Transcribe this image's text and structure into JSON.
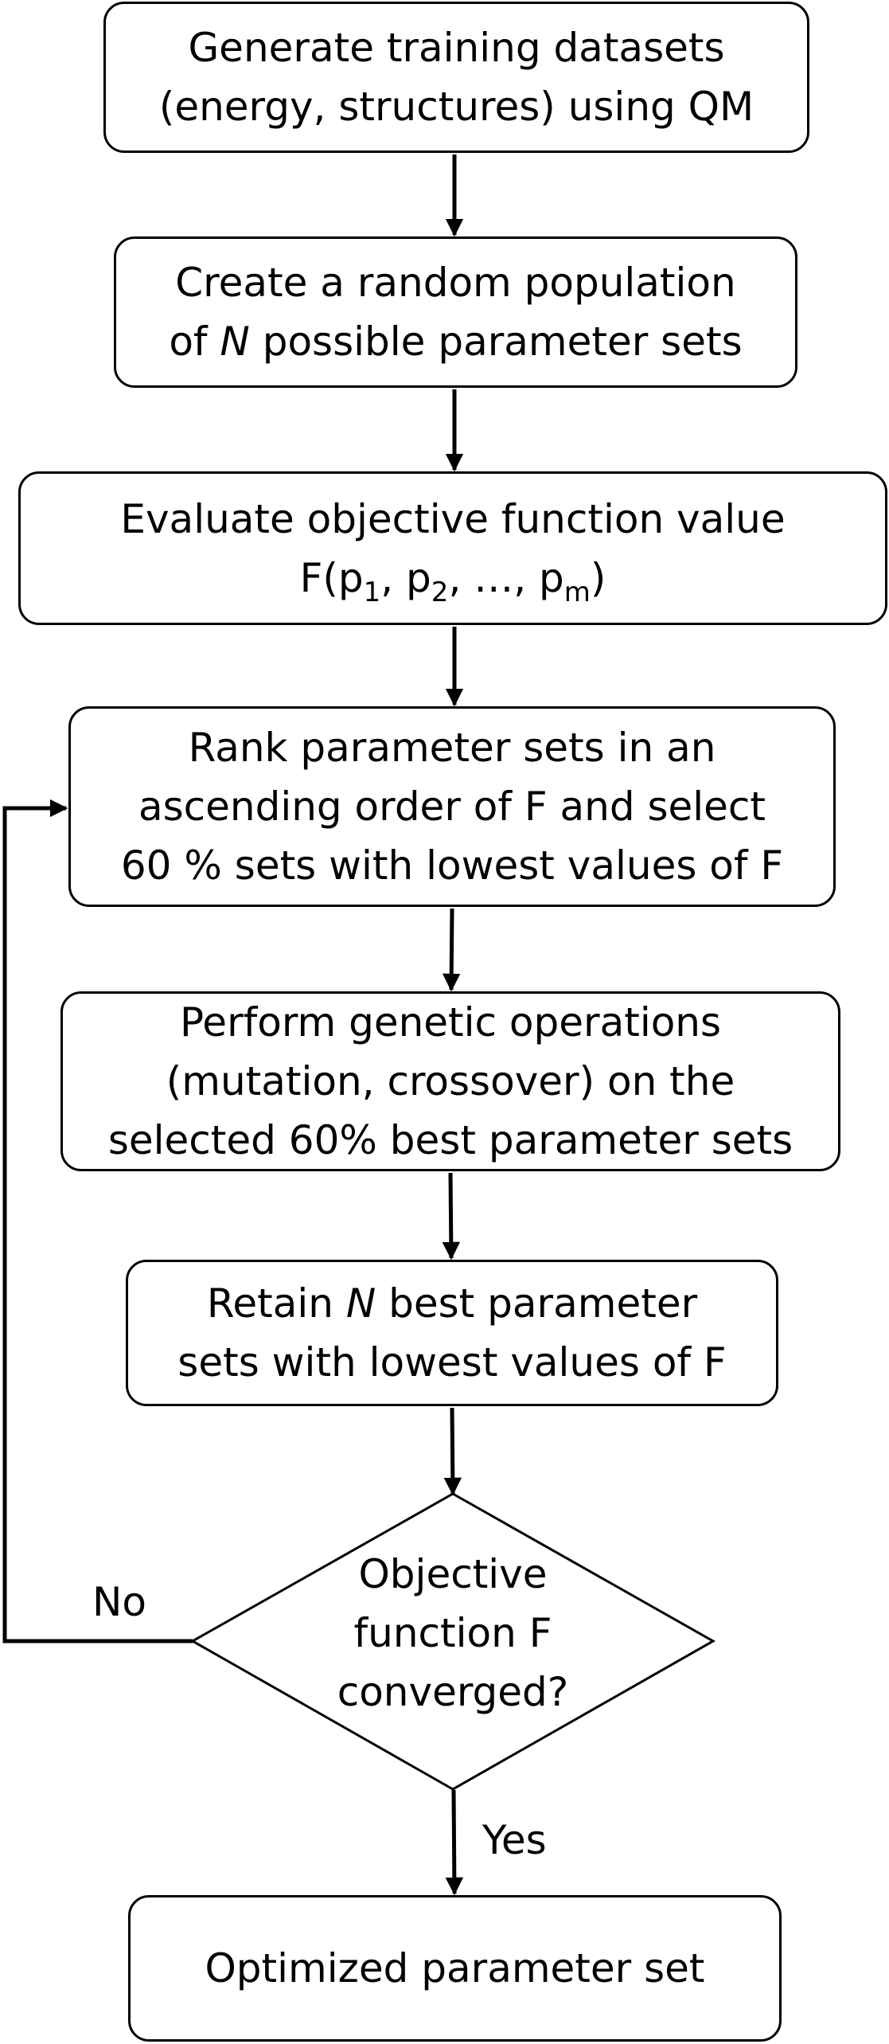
{
  "diagram": {
    "steps": [
      {
        "id": "generate",
        "lines": [
          "Generate training datasets",
          "(energy, structures) using QM"
        ]
      },
      {
        "id": "create",
        "lines": [
          "Create a random population",
          "of {N} possible parameter sets"
        ]
      },
      {
        "id": "evaluate",
        "lines": [
          "Evaluate objective function value"
        ],
        "formula": {
          "func": "F(p",
          "sub1": "1",
          "mid1": ", p",
          "sub2": "2",
          "mid2": ", …, p",
          "sub3": "m",
          "end": ")"
        }
      },
      {
        "id": "rank",
        "lines": [
          "Rank parameter sets in an",
          "ascending order of F and select",
          "60 % sets with lowest values of F"
        ]
      },
      {
        "id": "genetic",
        "lines": [
          "Perform genetic operations",
          "(mutation, crossover) on the",
          "selected 60% best parameter sets"
        ]
      },
      {
        "id": "retain",
        "lines": [
          "Retain {N} best parameter",
          "sets with lowest values of F"
        ]
      },
      {
        "id": "optimized",
        "lines": [
          "Optimized parameter set"
        ]
      }
    ],
    "decision": {
      "lines": [
        "Objective",
        "function F",
        "converged?"
      ]
    },
    "branches": {
      "no": "No",
      "yes": "Yes"
    },
    "symbols": {
      "N": "N"
    }
  }
}
